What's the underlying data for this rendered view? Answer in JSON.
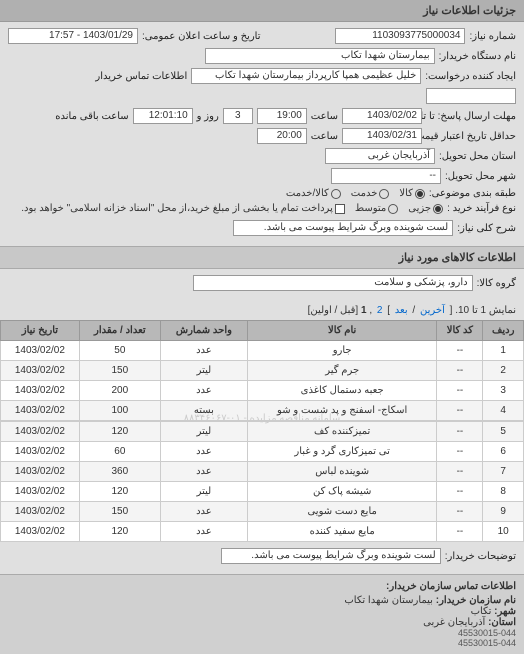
{
  "header": {
    "title": "جزئیات اطلاعات نیاز"
  },
  "info": {
    "req_no_label": "شماره نیاز:",
    "req_no": "1103093775000034",
    "announce_label": "تاریخ و ساعت اعلان عمومی:",
    "announce_value": "1403/01/29 - 17:57",
    "buyer_label": "نام دستگاه خریدار:",
    "buyer": "بیمارستان شهدا تکاب",
    "creator_label": "ایجاد کننده درخواست:",
    "creator": "خلیل عظیمی همپا کارپرداز بیمارستان شهدا تکاب",
    "contact_label": "اطلاعات تماس خریدار",
    "contact": "",
    "deadline_reply": "مهلت ارسال پاسخ: تا تاریخ:",
    "d_date1": "1403/02/02",
    "d_time_lbl": "ساعت",
    "d_time1": "19:00",
    "d_and_lbl": "روز و",
    "d_days": "3",
    "d_remain_lbl": "ساعت باقی مانده",
    "d_remain": "12:01:10",
    "validity_lbl": "حداقل تاریخ اعتبار قیمت: تا تاریخ:",
    "d_date2": "1403/02/31",
    "d_time2": "20:00",
    "deliver_state_lbl": "استان محل تحویل:",
    "deliver_state": "آذربایجان غربی",
    "deliver_city_lbl": "شهر محل تحویل:",
    "deliver_city": "--",
    "class_lbl": "طبقه بندی موضوعی:",
    "class_opts": {
      "goods": "کالا",
      "service": "خدمت",
      "both": "کالا/خدمت"
    },
    "buy_type_lbl": "نوع فرآیند خرید :",
    "buy_opts": {
      "small": "جزیی",
      "medium": "متوسط",
      "note": "پرداخت تمام یا بخشی از مبلغ خرید،از محل \"اسناد خزانه اسلامی\" خواهد بود."
    },
    "general_lbl": "شرح کلی نیاز:",
    "general_val": "لست شوینده وبرگ شرایط پیوست می باشد."
  },
  "items_header": "اطلاعات کالاهای مورد نیاز",
  "group_lbl": "گروه کالا:",
  "group_val": "دارو، پزشکی و سلامت",
  "pager": {
    "prefix": "نمایش 1 تا 10. [",
    "last": "آخرین",
    "sep1": " / ",
    "next": "بعد",
    "sep2": "] ",
    "p2": "2",
    "comma": " ,",
    "p1": "1",
    "suffix": " [قبل / اولین]"
  },
  "table": {
    "headers": [
      "ردیف",
      "کد کالا",
      "نام کالا",
      "واحد شمارش",
      "تعداد / مقدار",
      "تاریخ نیاز"
    ],
    "rows": [
      [
        "1",
        "--",
        "جارو",
        "عدد",
        "50",
        "1403/02/02"
      ],
      [
        "2",
        "--",
        "جرم گیر",
        "لیتر",
        "150",
        "1403/02/02"
      ],
      [
        "3",
        "--",
        "جعبه دستمال کاغذی",
        "عدد",
        "200",
        "1403/02/02"
      ],
      [
        "4",
        "--",
        "اسکاج- اسفنج و پد شست و شو",
        "بسته",
        "100",
        "1403/02/02"
      ],
      [
        "5",
        "--",
        "تمیزکننده کف",
        "لیتر",
        "120",
        "1403/02/02"
      ],
      [
        "6",
        "--",
        "تی تمیزکاری گرد و غبار",
        "عدد",
        "60",
        "1403/02/02"
      ],
      [
        "7",
        "--",
        "شوینده لباس",
        "عدد",
        "360",
        "1403/02/02"
      ],
      [
        "8",
        "--",
        "شیشه پاک کن",
        "لیتر",
        "120",
        "1403/02/02"
      ],
      [
        "9",
        "--",
        "مایع دست شویی",
        "عدد",
        "150",
        "1403/02/02"
      ],
      [
        "10",
        "--",
        "مایع سفید کننده",
        "عدد",
        "120",
        "1403/02/02"
      ]
    ],
    "watermark": "سامانه مناقصه مزایده - ۰۱-۸۸۳۴۶۰۶۷"
  },
  "buyer_notes_lbl": "توضیحات خریدار:",
  "buyer_notes": "لست شوینده وبرگ شرایط پیوست می باشد.",
  "footer": {
    "title": "اطلاعات تماس سازمان خریدار:",
    "org_lbl": "نام سازمان خریدار:",
    "org": "بیمارستان شهدا تکاب",
    "city_lbl": "شهر:",
    "city": "تکاب",
    "state_lbl": "استان:",
    "state": "آذربایجان غربی",
    "phone1": "45530015-044",
    "phone2": "45530015-044"
  }
}
